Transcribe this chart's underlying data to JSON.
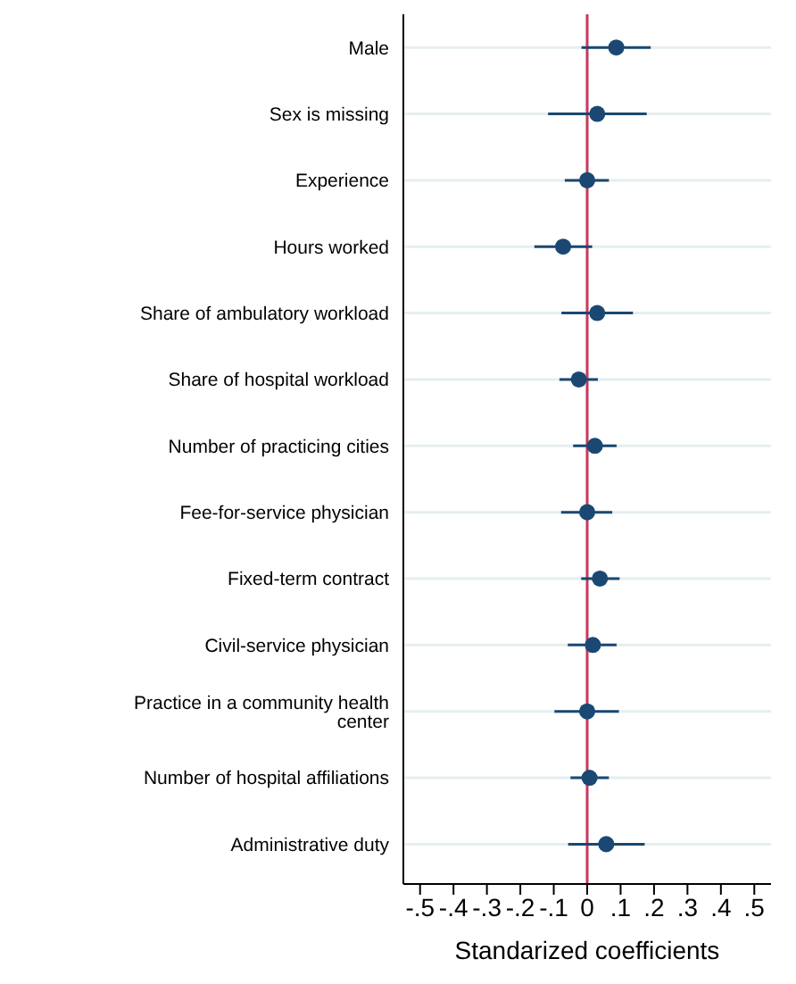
{
  "chart_data": {
    "type": "scatter",
    "orientation": "horizontal",
    "xlabel": "Standarized coefficients",
    "categories": [
      "Male",
      "Sex is missing",
      "Experience",
      "Hours worked",
      "Share of ambulatory workload",
      "Share of hospital workload",
      "Number of practicing cities",
      "Fee-for-service physician",
      "Fixed-term contract",
      "Civil-service physician",
      "Practice in a community health center",
      "Number of hospital affiliations",
      "Administrative duty"
    ],
    "series": [
      {
        "color": "#1a4872",
        "values": [
          0.087,
          0.03,
          0,
          -0.072,
          0.03,
          -0.025,
          0.023,
          0,
          0.038,
          0.017,
          0,
          0.007,
          0.057
        ],
        "errors": [
          [
            -0.017,
            0.19
          ],
          [
            -0.117,
            0.178
          ],
          [
            -0.067,
            0.065
          ],
          [
            -0.158,
            0.015
          ],
          [
            -0.077,
            0.137
          ],
          [
            -0.083,
            0.032
          ],
          [
            -0.042,
            0.088
          ],
          [
            -0.078,
            0.075
          ],
          [
            -0.018,
            0.097
          ],
          [
            -0.058,
            0.088
          ],
          [
            -0.098,
            0.095
          ],
          [
            -0.05,
            0.065
          ],
          [
            -0.057,
            0.172
          ]
        ]
      }
    ],
    "xlim": [
      -0.55,
      0.55
    ],
    "xticks": [
      {
        "value": -0.5,
        "label": "-.5"
      },
      {
        "value": -0.4,
        "label": "-.4"
      },
      {
        "value": -0.3,
        "label": "-.3"
      },
      {
        "value": -0.2,
        "label": "-.2"
      },
      {
        "value": -0.1,
        "label": "-.1"
      },
      0,
      {
        "value": 0.1,
        "label": ".1"
      },
      {
        "value": 0.2,
        "label": ".2"
      },
      {
        "value": 0.3,
        "label": ".3"
      },
      {
        "value": 0.4,
        "label": ".4"
      },
      {
        "value": 0.5,
        "label": ".5"
      }
    ],
    "ref_lines": [
      {
        "axis": "x",
        "value": 0,
        "color": "#c8385e"
      }
    ],
    "grid": "y",
    "marker": "circle"
  }
}
